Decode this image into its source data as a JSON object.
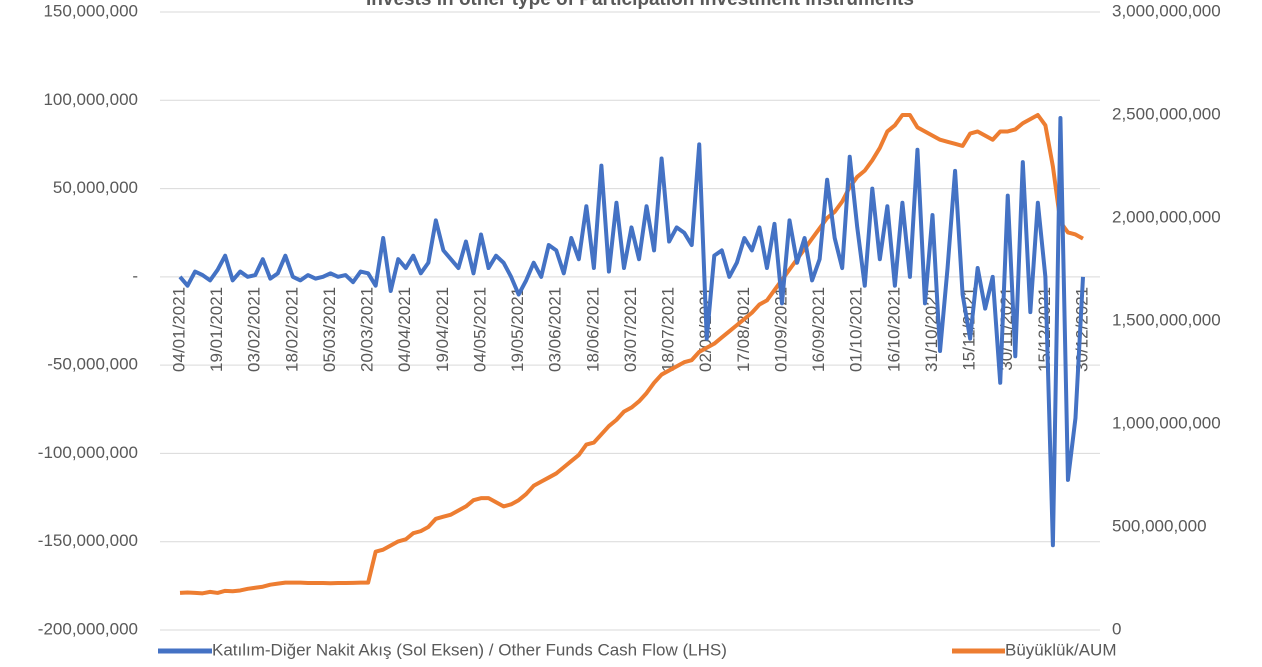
{
  "chart_data": {
    "type": "line",
    "title": "Invests in other type of Participation Investment Instruments",
    "categories": [
      "04/01/2021",
      null,
      null,
      null,
      null,
      "19/01/2021",
      null,
      null,
      null,
      null,
      "03/02/2021",
      null,
      null,
      null,
      null,
      "18/02/2021",
      null,
      null,
      null,
      null,
      "05/03/2021",
      null,
      null,
      null,
      null,
      "20/03/2021",
      null,
      null,
      null,
      null,
      "04/04/2021",
      null,
      null,
      null,
      null,
      "19/04/2021",
      null,
      null,
      null,
      null,
      "04/05/2021",
      null,
      null,
      null,
      null,
      "19/05/2021",
      null,
      null,
      null,
      null,
      "03/06/2021",
      null,
      null,
      null,
      null,
      "18/06/2021",
      null,
      null,
      null,
      null,
      "03/07/2021",
      null,
      null,
      null,
      null,
      "18/07/2021",
      null,
      null,
      null,
      null,
      "02/08/2021",
      null,
      null,
      null,
      null,
      "17/08/2021",
      null,
      null,
      null,
      null,
      "01/09/2021",
      null,
      null,
      null,
      null,
      "16/09/2021",
      null,
      null,
      null,
      null,
      "01/10/2021",
      null,
      null,
      null,
      null,
      "16/10/2021",
      null,
      null,
      null,
      null,
      "31/10/2021",
      null,
      null,
      null,
      null,
      "15/11/2021",
      null,
      null,
      null,
      null,
      "30/11/2021",
      null,
      null,
      null,
      null,
      "15/12/2021",
      null,
      null,
      null,
      null,
      "30/12/2021"
    ],
    "series": [
      {
        "name": "Katılım-Diğer Nakit Akış (Sol Eksen) / Other Funds Cash Flow (LHS)",
        "color": "#4472c4",
        "axis": "y",
        "values": [
          0,
          -5000000,
          3000000,
          1000000,
          -2000000,
          4000000,
          12000000,
          -2000000,
          3000000,
          0,
          1000000,
          10000000,
          -1000000,
          2000000,
          12000000,
          0,
          -2000000,
          1000000,
          -1000000,
          0,
          2000000,
          0,
          1000000,
          -3000000,
          3000000,
          2000000,
          -5000000,
          22000000,
          -8000000,
          10000000,
          5000000,
          12000000,
          2000000,
          8000000,
          32000000,
          15000000,
          10000000,
          5000000,
          20000000,
          2000000,
          24000000,
          5000000,
          12000000,
          8000000,
          0,
          -10000000,
          -2000000,
          8000000,
          0,
          18000000,
          15000000,
          2000000,
          22000000,
          10000000,
          40000000,
          5000000,
          63000000,
          3000000,
          42000000,
          5000000,
          28000000,
          10000000,
          40000000,
          15000000,
          67000000,
          20000000,
          28000000,
          25000000,
          18000000,
          75000000,
          -35000000,
          12000000,
          15000000,
          0,
          8000000,
          22000000,
          15000000,
          28000000,
          5000000,
          30000000,
          -15000000,
          32000000,
          8000000,
          22000000,
          -2000000,
          10000000,
          55000000,
          22000000,
          5000000,
          68000000,
          28000000,
          -5000000,
          50000000,
          10000000,
          40000000,
          -5000000,
          42000000,
          0,
          72000000,
          -15000000,
          35000000,
          -42000000,
          5000000,
          60000000,
          -10000000,
          -35000000,
          5000000,
          -18000000,
          0,
          -60000000,
          46000000,
          -45000000,
          65000000,
          -20000000,
          42000000,
          0,
          -152000000,
          90000000,
          -115000000,
          -80000000,
          0
        ]
      },
      {
        "name": "Büyüklük/AUM",
        "color": "#ed7d31",
        "axis": "y2",
        "values": [
          180000000,
          182000000,
          180000000,
          178000000,
          185000000,
          180000000,
          190000000,
          188000000,
          192000000,
          200000000,
          205000000,
          210000000,
          220000000,
          225000000,
          230000000,
          230000000,
          230000000,
          228000000,
          228000000,
          228000000,
          227000000,
          228000000,
          228000000,
          229000000,
          230000000,
          230000000,
          380000000,
          390000000,
          410000000,
          430000000,
          440000000,
          470000000,
          480000000,
          500000000,
          540000000,
          550000000,
          560000000,
          580000000,
          600000000,
          630000000,
          640000000,
          640000000,
          620000000,
          600000000,
          610000000,
          630000000,
          660000000,
          700000000,
          720000000,
          740000000,
          760000000,
          790000000,
          820000000,
          850000000,
          900000000,
          910000000,
          950000000,
          990000000,
          1020000000,
          1060000000,
          1080000000,
          1110000000,
          1150000000,
          1200000000,
          1240000000,
          1260000000,
          1280000000,
          1300000000,
          1310000000,
          1350000000,
          1370000000,
          1390000000,
          1420000000,
          1450000000,
          1480000000,
          1510000000,
          1540000000,
          1580000000,
          1600000000,
          1650000000,
          1700000000,
          1750000000,
          1800000000,
          1850000000,
          1900000000,
          1950000000,
          2000000000,
          2030000000,
          2080000000,
          2150000000,
          2200000000,
          2230000000,
          2280000000,
          2340000000,
          2420000000,
          2450000000,
          2500000000,
          2500000000,
          2440000000,
          2420000000,
          2400000000,
          2380000000,
          2370000000,
          2360000000,
          2350000000,
          2410000000,
          2420000000,
          2400000000,
          2380000000,
          2420000000,
          2420000000,
          2430000000,
          2460000000,
          2480000000,
          2500000000,
          2450000000,
          2250000000,
          1980000000,
          1930000000,
          1920000000,
          1900000000
        ]
      }
    ],
    "ylim": [
      -200000000,
      150000000
    ],
    "yticks": [
      {
        "value": -200000000,
        "label": "-200,000,000"
      },
      {
        "value": -150000000,
        "label": "-150,000,000"
      },
      {
        "value": -100000000,
        "label": "-100,000,000"
      },
      {
        "value": -50000000,
        "label": "-50,000,000"
      },
      {
        "value": 0,
        "label": "-"
      },
      {
        "value": 50000000,
        "label": "50,000,000"
      },
      {
        "value": 100000000,
        "label": "100,000,000"
      },
      {
        "value": 150000000,
        "label": "150,000,000"
      }
    ],
    "y2lim": [
      0,
      3000000000
    ],
    "y2ticks": [
      0,
      {
        "value": 500000000,
        "label": "500,000,000"
      },
      {
        "value": 1000000000,
        "label": "1,000,000,000"
      },
      {
        "value": 1500000000,
        "label": "1,500,000,000"
      },
      {
        "value": 2000000000,
        "label": "2,000,000,000"
      },
      {
        "value": 2500000000,
        "label": "2,500,000,000"
      },
      {
        "value": 3000000000,
        "label": "3,000,000,000"
      }
    ],
    "grid": true,
    "legend": "bottom"
  }
}
